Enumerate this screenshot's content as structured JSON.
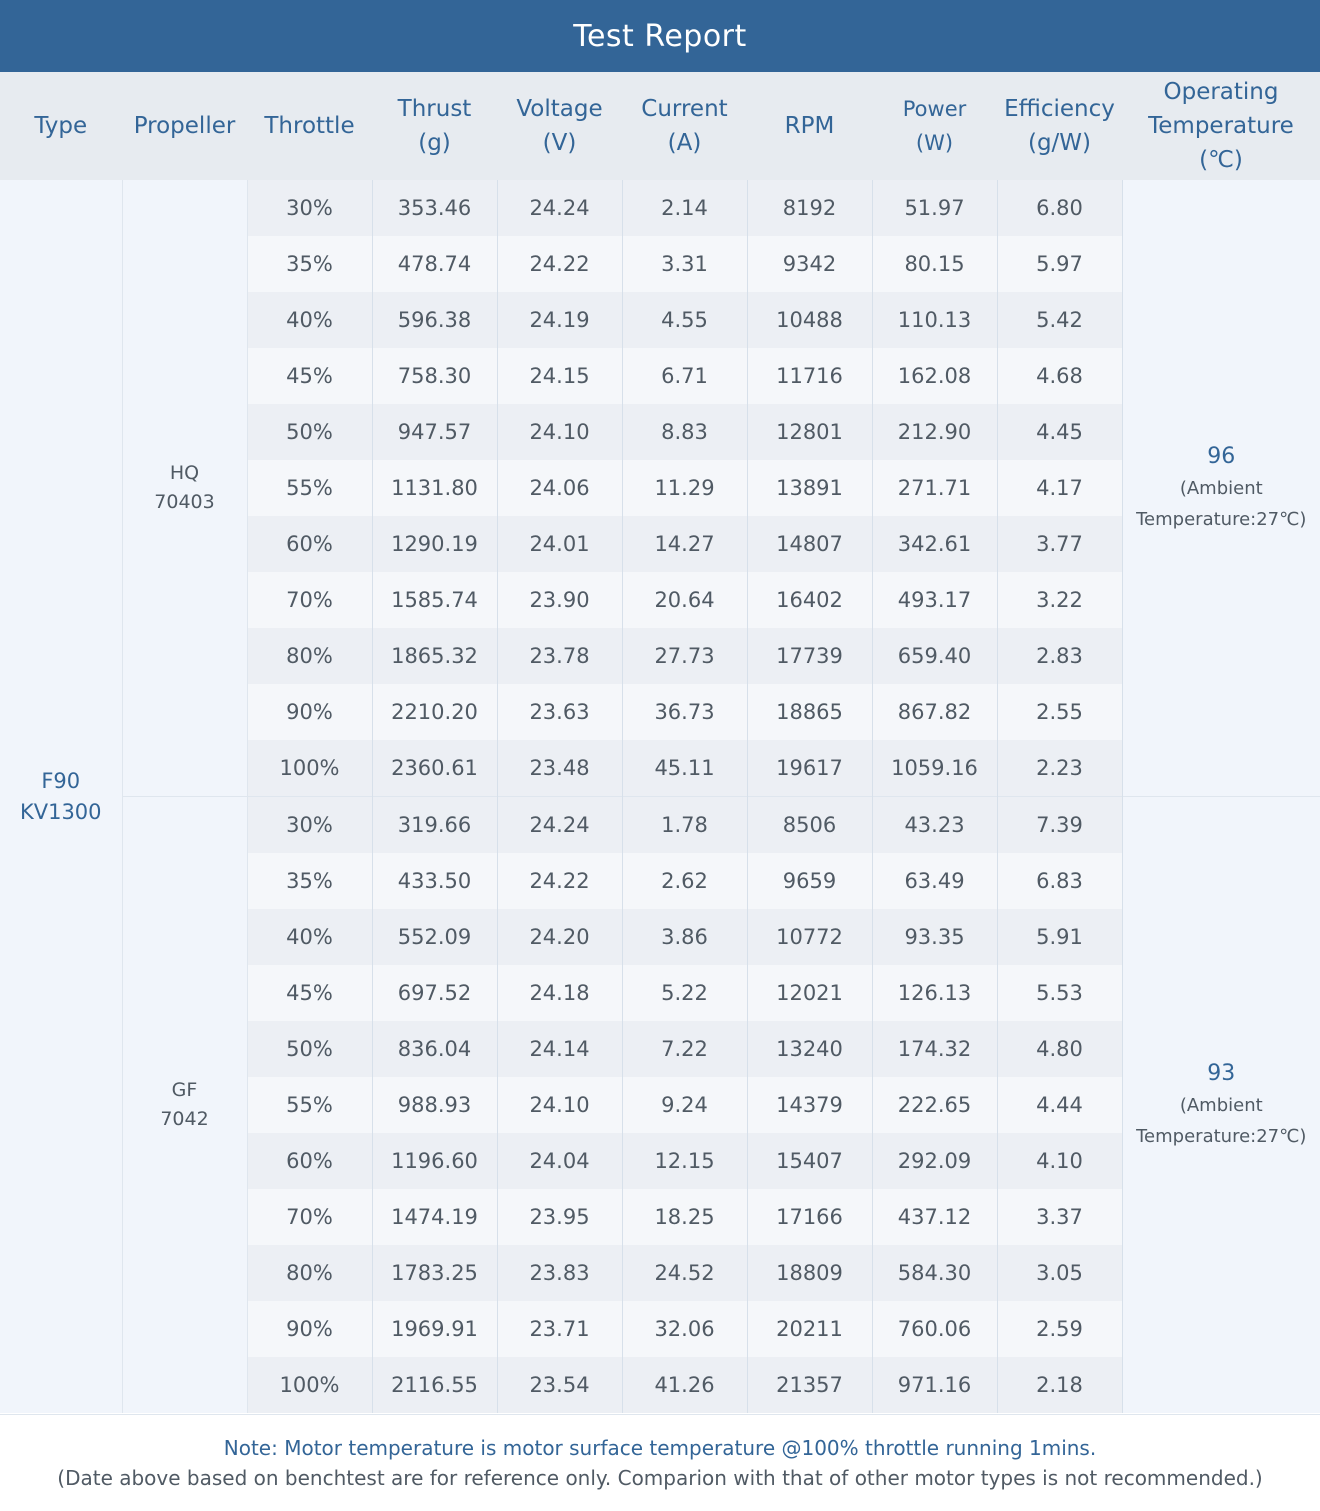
{
  "title": "Test Report",
  "headers": {
    "type": "Type",
    "propeller": "Propeller",
    "throttle": "Throttle",
    "thrust": [
      "Thrust",
      "(g)"
    ],
    "voltage": [
      "Voltage",
      "(V)"
    ],
    "current": [
      "Current",
      "(A)"
    ],
    "rpm": "RPM",
    "power": [
      "Power",
      "(W)"
    ],
    "efficiency": [
      "Efficiency",
      "(g/W)"
    ],
    "temperature": [
      "Operating",
      "Temperature",
      "(℃)"
    ]
  },
  "motor_type": [
    "F90",
    "KV1300"
  ],
  "groups": [
    {
      "propeller": [
        "HQ",
        "70403"
      ],
      "temperature": "96",
      "ambient": [
        "(Ambient",
        "Temperature:27℃)"
      ],
      "rows": [
        [
          "30%",
          "353.46",
          "24.24",
          "2.14",
          "8192",
          "51.97",
          "6.80"
        ],
        [
          "35%",
          "478.74",
          "24.22",
          "3.31",
          "9342",
          "80.15",
          "5.97"
        ],
        [
          "40%",
          "596.38",
          "24.19",
          "4.55",
          "10488",
          "110.13",
          "5.42"
        ],
        [
          "45%",
          "758.30",
          "24.15",
          "6.71",
          "11716",
          "162.08",
          "4.68"
        ],
        [
          "50%",
          "947.57",
          "24.10",
          "8.83",
          "12801",
          "212.90",
          "4.45"
        ],
        [
          "55%",
          "1131.80",
          "24.06",
          "11.29",
          "13891",
          "271.71",
          "4.17"
        ],
        [
          "60%",
          "1290.19",
          "24.01",
          "14.27",
          "14807",
          "342.61",
          "3.77"
        ],
        [
          "70%",
          "1585.74",
          "23.90",
          "20.64",
          "16402",
          "493.17",
          "3.22"
        ],
        [
          "80%",
          "1865.32",
          "23.78",
          "27.73",
          "17739",
          "659.40",
          "2.83"
        ],
        [
          "90%",
          "2210.20",
          "23.63",
          "36.73",
          "18865",
          "867.82",
          "2.55"
        ],
        [
          "100%",
          "2360.61",
          "23.48",
          "45.11",
          "19617",
          "1059.16",
          "2.23"
        ]
      ]
    },
    {
      "propeller": [
        "GF",
        "7042"
      ],
      "temperature": "93",
      "ambient": [
        "(Ambient",
        "Temperature:27℃)"
      ],
      "rows": [
        [
          "30%",
          "319.66",
          "24.24",
          "1.78",
          "8506",
          "43.23",
          "7.39"
        ],
        [
          "35%",
          "433.50",
          "24.22",
          "2.62",
          "9659",
          "63.49",
          "6.83"
        ],
        [
          "40%",
          "552.09",
          "24.20",
          "3.86",
          "10772",
          "93.35",
          "5.91"
        ],
        [
          "45%",
          "697.52",
          "24.18",
          "5.22",
          "12021",
          "126.13",
          "5.53"
        ],
        [
          "50%",
          "836.04",
          "24.14",
          "7.22",
          "13240",
          "174.32",
          "4.80"
        ],
        [
          "55%",
          "988.93",
          "24.10",
          "9.24",
          "14379",
          "222.65",
          "4.44"
        ],
        [
          "60%",
          "1196.60",
          "24.04",
          "12.15",
          "15407",
          "292.09",
          "4.10"
        ],
        [
          "70%",
          "1474.19",
          "23.95",
          "18.25",
          "17166",
          "437.12",
          "3.37"
        ],
        [
          "80%",
          "1783.25",
          "23.83",
          "24.52",
          "18809",
          "584.30",
          "3.05"
        ],
        [
          "90%",
          "1969.91",
          "23.71",
          "32.06",
          "20211",
          "760.06",
          "2.59"
        ],
        [
          "100%",
          "2116.55",
          "23.54",
          "41.26",
          "21357",
          "971.16",
          "2.18"
        ]
      ]
    }
  ],
  "note": {
    "line1": "Note: Motor temperature is motor surface temperature @100% throttle running 1mins.",
    "line2": "(Date above based on benchtest are for reference only. Comparion with that of other motor types is not recommended.)"
  },
  "colors": {
    "header_bar": "#336597",
    "header_row": "#e7ebf0",
    "accent_text": "#336597",
    "body_text": "#505a64"
  }
}
